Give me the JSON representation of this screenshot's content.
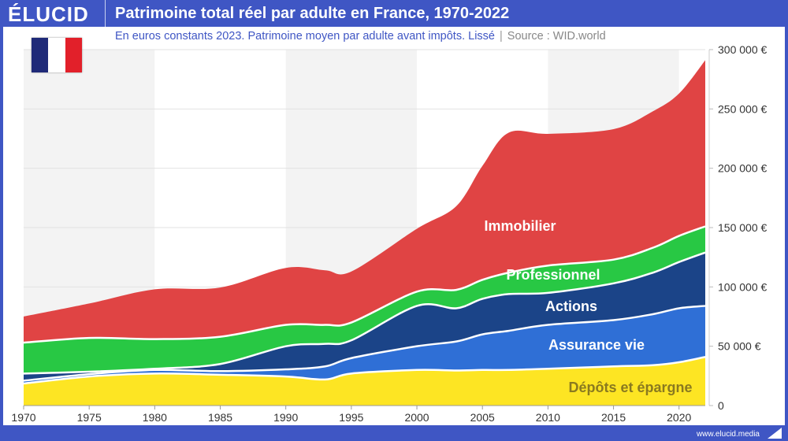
{
  "header": {
    "logo": "ÉLUCID",
    "title": "Patrimoine total réel par adulte en France, 1970-2022"
  },
  "subtitle": {
    "text": "En euros constants 2023. Patrimoine moyen par adulte avant impôts. Lissé",
    "separator": "|",
    "source": "Source : WID.world"
  },
  "footer": {
    "url": "www.elucid.media"
  },
  "flag": {
    "colors": [
      "#1f2a78",
      "#ffffff",
      "#e2202a"
    ]
  },
  "chart_data": {
    "type": "area",
    "stacked": true,
    "title": "Patrimoine total réel par adulte en France, 1970-2022",
    "x": [
      1970,
      1975,
      1980,
      1985,
      1990,
      1993,
      1995,
      2000,
      2003,
      2005,
      2007,
      2010,
      2015,
      2018,
      2020,
      2022
    ],
    "xlim": [
      1970,
      2022
    ],
    "ylim": [
      0,
      300000
    ],
    "x_ticks": [
      "1970",
      "1975",
      "1980",
      "1985",
      "1990",
      "1995",
      "2000",
      "2005",
      "2010",
      "2015",
      "2020"
    ],
    "y_ticks": [
      "0",
      "50 000 €",
      "100 000 €",
      "150 000 €",
      "200 000 €",
      "250 000 €",
      "300 000 €"
    ],
    "y_axis_side": "right",
    "grid": true,
    "series": [
      {
        "name": "Dépôts et épargne",
        "color": "#fde523",
        "label_color": "#8a7a20",
        "values": [
          18600,
          24500,
          27000,
          26000,
          24500,
          22000,
          27000,
          30000,
          29500,
          30000,
          30000,
          31000,
          33000,
          34000,
          36500,
          41000
        ]
      },
      {
        "name": "Assurance vie",
        "color": "#2f6fd6",
        "label_color": "#ffffff",
        "values": [
          2400,
          2000,
          3000,
          3000,
          6000,
          11000,
          13000,
          20000,
          24500,
          30000,
          33000,
          37000,
          39000,
          43000,
          45500,
          43000
        ]
      },
      {
        "name": "Actions",
        "color": "#1b4488",
        "label_color": "#ffffff",
        "values": [
          6000,
          2000,
          1000,
          6000,
          19500,
          19000,
          15000,
          34000,
          28000,
          30000,
          31000,
          27000,
          31000,
          35000,
          39000,
          45000
        ]
      },
      {
        "name": "Professionnel",
        "color": "#28c844",
        "label_color": "#ffffff",
        "values": [
          26000,
          28500,
          25000,
          23000,
          18000,
          16000,
          15000,
          12000,
          15500,
          16000,
          18000,
          23000,
          20000,
          21000,
          22000,
          22000
        ]
      },
      {
        "name": "Immobilier",
        "color": "#e04444",
        "label_color": "#ffffff",
        "values": [
          22000,
          29000,
          42000,
          41500,
          48000,
          46000,
          43000,
          53000,
          70500,
          96000,
          118000,
          111000,
          110000,
          115000,
          120000,
          140000
        ]
      }
    ],
    "bands": {
      "colors": [
        "#f3f3f3",
        "#ffffff"
      ],
      "period_years": 10
    }
  }
}
